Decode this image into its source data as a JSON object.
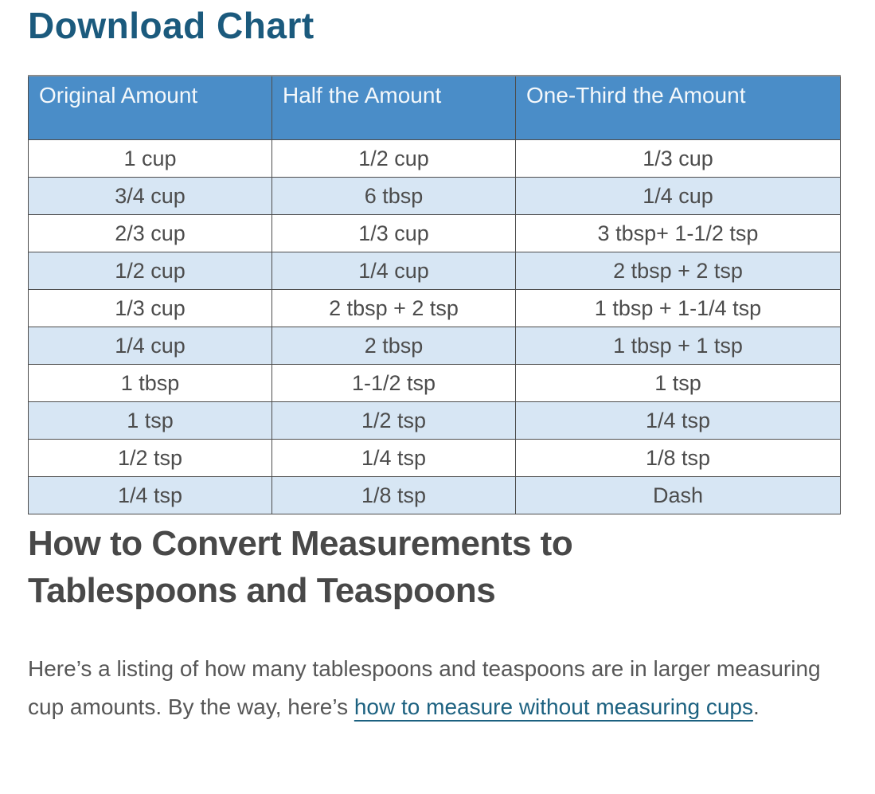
{
  "page": {
    "title": "Download Chart",
    "section_heading": "How to Convert Measurements to Tablespoons and Teaspoons"
  },
  "table": {
    "headers": [
      "Original Amount",
      "Half the Amount",
      "One-Third the Amount"
    ],
    "rows": [
      [
        "1 cup",
        "1/2 cup",
        "1/3 cup"
      ],
      [
        "3/4 cup",
        "6 tbsp",
        "1/4 cup"
      ],
      [
        "2/3 cup",
        "1/3 cup",
        "3 tbsp+ 1-1/2 tsp"
      ],
      [
        "1/2 cup",
        "1/4 cup",
        "2 tbsp + 2 tsp"
      ],
      [
        "1/3 cup",
        "2 tbsp + 2 tsp",
        "1 tbsp + 1-1/4 tsp"
      ],
      [
        "1/4 cup",
        "2 tbsp",
        "1 tbsp + 1 tsp"
      ],
      [
        "1 tbsp",
        "1-1/2 tsp",
        "1 tsp"
      ],
      [
        "1 tsp",
        "1/2 tsp",
        "1/4 tsp"
      ],
      [
        "1/2 tsp",
        "1/4 tsp",
        "1/8 tsp"
      ],
      [
        "1/4 tsp",
        "1/8 tsp",
        "Dash"
      ]
    ]
  },
  "paragraph": {
    "text_before_link": "Here’s a listing of how many tablespoons and teaspoons are in larger measuring cup amounts. By the way, here’s ",
    "link_text": "how to measure without measuring cups",
    "text_after_link": "."
  },
  "colors": {
    "heading_teal": "#1b5a7d",
    "table_header_bg": "#4a8dc8",
    "table_alt_row_bg": "#d7e6f4",
    "cell_text": "#4c4c4c",
    "section_heading_text": "#484848",
    "body_text": "#575757",
    "link_color": "#1c6180"
  }
}
